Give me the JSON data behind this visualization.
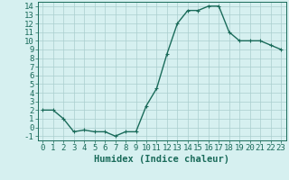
{
  "x": [
    0,
    1,
    2,
    3,
    4,
    5,
    6,
    7,
    8,
    9,
    10,
    11,
    12,
    13,
    14,
    15,
    16,
    17,
    18,
    19,
    20,
    21,
    22,
    23
  ],
  "y": [
    2,
    2,
    1,
    -0.5,
    -0.3,
    -0.5,
    -0.5,
    -1,
    -0.5,
    -0.5,
    2.5,
    4.5,
    8.5,
    12,
    13.5,
    13.5,
    14,
    14,
    11,
    10,
    10,
    10,
    9.5,
    9
  ],
  "line_color": "#1a6b5a",
  "marker": "+",
  "bg_color": "#d6f0f0",
  "grid_color": "#aacece",
  "xlabel": "Humidex (Indice chaleur)",
  "xlim": [
    -0.5,
    23.5
  ],
  "ylim": [
    -1.5,
    14.5
  ],
  "yticks": [
    -1,
    0,
    1,
    2,
    3,
    4,
    5,
    6,
    7,
    8,
    9,
    10,
    11,
    12,
    13,
    14
  ],
  "xticks": [
    0,
    1,
    2,
    3,
    4,
    5,
    6,
    7,
    8,
    9,
    10,
    11,
    12,
    13,
    14,
    15,
    16,
    17,
    18,
    19,
    20,
    21,
    22,
    23
  ],
  "xtick_labels": [
    "0",
    "1",
    "2",
    "3",
    "4",
    "5",
    "6",
    "7",
    "8",
    "9",
    "10",
    "11",
    "12",
    "13",
    "14",
    "15",
    "16",
    "17",
    "18",
    "19",
    "20",
    "21",
    "22",
    "23"
  ],
  "linewidth": 1.0,
  "markersize": 3,
  "font_size": 6.5,
  "xlabel_fontsize": 7.5
}
